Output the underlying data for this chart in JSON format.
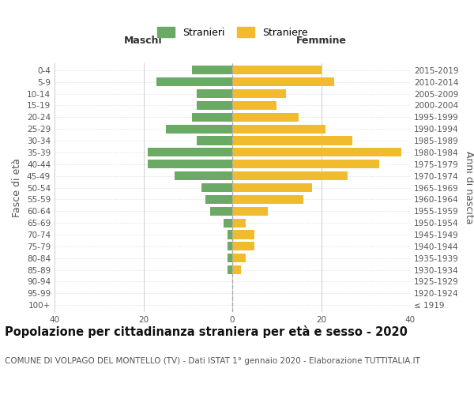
{
  "age_groups": [
    "100+",
    "95-99",
    "90-94",
    "85-89",
    "80-84",
    "75-79",
    "70-74",
    "65-69",
    "60-64",
    "55-59",
    "50-54",
    "45-49",
    "40-44",
    "35-39",
    "30-34",
    "25-29",
    "20-24",
    "15-19",
    "10-14",
    "5-9",
    "0-4"
  ],
  "birth_years": [
    "≤ 1919",
    "1920-1924",
    "1925-1929",
    "1930-1934",
    "1935-1939",
    "1940-1944",
    "1945-1949",
    "1950-1954",
    "1955-1959",
    "1960-1964",
    "1965-1969",
    "1970-1974",
    "1975-1979",
    "1980-1984",
    "1985-1989",
    "1990-1994",
    "1995-1999",
    "2000-2004",
    "2005-2009",
    "2010-2014",
    "2015-2019"
  ],
  "males": [
    0,
    0,
    0,
    1,
    1,
    1,
    1,
    2,
    5,
    6,
    7,
    13,
    19,
    19,
    8,
    15,
    9,
    8,
    8,
    17,
    9
  ],
  "females": [
    0,
    0,
    0,
    2,
    3,
    5,
    5,
    3,
    8,
    16,
    18,
    26,
    33,
    38,
    27,
    21,
    15,
    10,
    12,
    23,
    20
  ],
  "male_color": "#6aaa64",
  "female_color": "#f0bc2e",
  "grid_color": "#cccccc",
  "center_line_color": "#aaaaaa",
  "title": "Popolazione per cittadinanza straniera per età e sesso - 2020",
  "subtitle": "COMUNE DI VOLPAGO DEL MONTELLO (TV) - Dati ISTAT 1° gennaio 2020 - Elaborazione TUTTITALIA.IT",
  "ylabel_left": "Fasce di età",
  "ylabel_right": "Anni di nascita",
  "header_left": "Maschi",
  "header_right": "Femmine",
  "xlim": [
    -40,
    40
  ],
  "xticks": [
    -40,
    -20,
    0,
    20,
    40
  ],
  "xticklabels": [
    "40",
    "20",
    "0",
    "20",
    "40"
  ],
  "legend_stranieri": "Stranieri",
  "legend_straniere": "Straniere",
  "background_color": "#ffffff",
  "title_fontsize": 10.5,
  "subtitle_fontsize": 7.5,
  "tick_fontsize": 7.5,
  "header_fontsize": 9,
  "label_fontsize": 9
}
